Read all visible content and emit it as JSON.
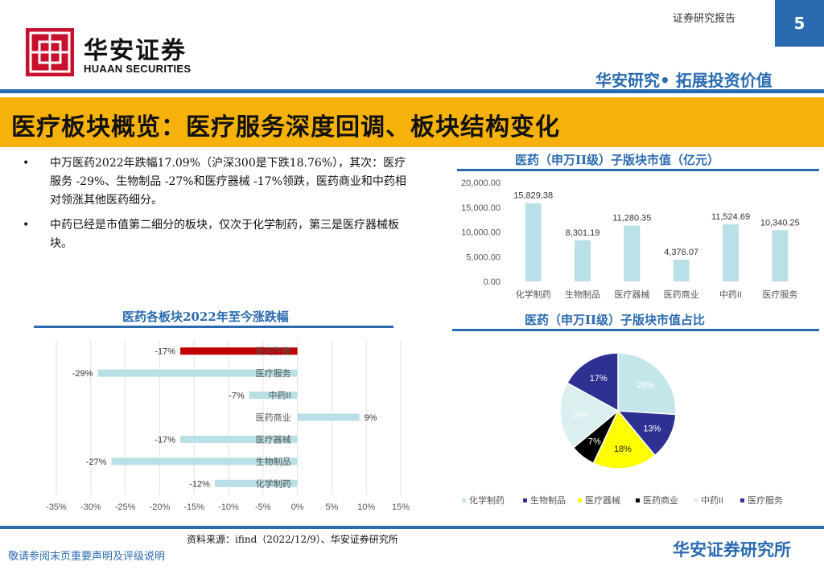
{
  "header": {
    "logo_cn": "华安证券",
    "logo_en": "HUAAN SECURITIES",
    "report_type": "证券研究报告",
    "page_number": "5",
    "slogan": "华安研究• 拓展投资价值"
  },
  "title": "医疗板块概览：医疗服务深度回调、板块结构变化",
  "bullets": [
    "中万医药2022年跌幅17.09%（沪深300是下跌18.76%），其次：医疗服务 -29%、生物制品 -27%和医疗器械 -17%领跌，医药商业和中药相对领涨其他医药细分。",
    "中药已经是市值第二细分的板块，仅次于化学制药，第三是医疗器械板块。"
  ],
  "footer": {
    "source": "资料来源：ifind（2022/12/9）、华安证券研究所",
    "disclaimer": "敬请参阅末页重要声明及评级说明",
    "brand": "华安证券研究所"
  },
  "colors": {
    "brand_blue": "#2a6bb0",
    "title_band": "#f6b20b",
    "logo_red": "#c8102e",
    "bar_light": "#b8e0e6",
    "bar_highlight": "#c00000"
  },
  "chart_data": [
    {
      "type": "bar",
      "title": "医药（申万II级）子版块市值（亿元）",
      "categories": [
        "化学制药",
        "生物制品",
        "医疗器械",
        "医药商业",
        "中药II",
        "医疗服务"
      ],
      "values": [
        15829.38,
        8301.19,
        11280.35,
        4376.07,
        11524.69,
        10340.25
      ],
      "value_labels": [
        "15,829.38",
        "8,301.19",
        "11,280.35",
        "4,376.07",
        "11,524.69",
        "10,340.25"
      ],
      "ylim": [
        0,
        20000
      ],
      "yticks": [
        "0.00",
        "5,000.00",
        "10,000.00",
        "15,000.00",
        "20,000.00"
      ],
      "bar_color": "#b8e0e6"
    },
    {
      "type": "bar",
      "orientation": "horizontal",
      "title": "医药各板块2022年至今涨跌幅",
      "categories": [
        "医药生物",
        "医疗服务",
        "中药II",
        "医药商业",
        "医疗器械",
        "生物制品",
        "化学制药"
      ],
      "values": [
        -17,
        -29,
        -7,
        9,
        -17,
        -27,
        -12
      ],
      "value_labels": [
        "-17%",
        "-29%",
        "-7%",
        "9%",
        "-17%",
        "-27%",
        "-12%"
      ],
      "highlight_index": 0,
      "xlim": [
        -35,
        15
      ],
      "xticks": [
        "-35%",
        "-30%",
        "-25%",
        "-20%",
        "-15%",
        "-10%",
        "-5%",
        "0%",
        "5%",
        "10%",
        "15%"
      ]
    },
    {
      "type": "pie",
      "title": "医药（申万II级）子版块市值占比",
      "categories": [
        "化学制药",
        "生物制品",
        "医疗器械",
        "医药商业",
        "中药II",
        "医疗服务"
      ],
      "values": [
        26,
        13,
        18,
        7,
        19,
        17
      ],
      "value_labels": [
        "26%",
        "13%",
        "18%",
        "7%",
        "19%",
        "17%"
      ],
      "colors": [
        "#c6e7ea",
        "#2e3192",
        "#ffff00",
        "#000000",
        "#dbeef0",
        "#2e3192"
      ],
      "legend_position": "bottom"
    }
  ]
}
